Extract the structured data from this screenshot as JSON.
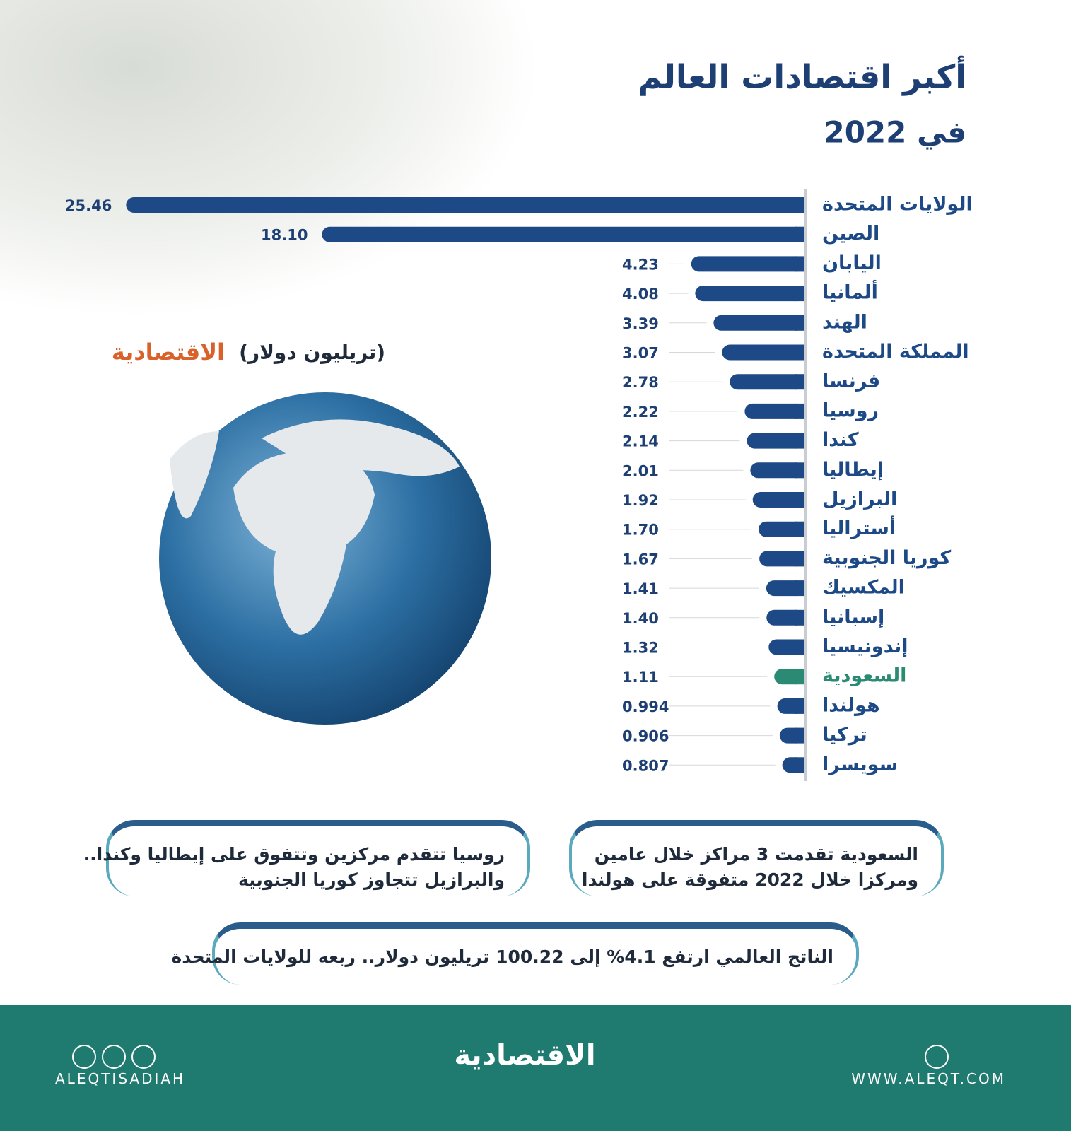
{
  "chart_data": {
    "type": "bar",
    "orientation": "horizontal",
    "title": "أكبر اقتصادات العالم",
    "subtitle": "في 2022",
    "unit_label": "(تريليون دولار)",
    "categories": [
      "الولايات المتحدة",
      "الصين",
      "اليابان",
      "ألمانيا",
      "الهند",
      "المملكة المتحدة",
      "فرنسا",
      "روسيا",
      "كندا",
      "إيطاليا",
      "البرازيل",
      "أستراليا",
      "كوريا الجنوبية",
      "المكسيك",
      "إسبانيا",
      "إندونيسيا",
      "السعودية",
      "هولندا",
      "تركيا",
      "سويسرا"
    ],
    "values": [
      25.46,
      18.1,
      4.23,
      4.08,
      3.39,
      3.07,
      2.78,
      2.22,
      2.14,
      2.01,
      1.92,
      1.7,
      1.67,
      1.41,
      1.4,
      1.32,
      1.11,
      0.994,
      0.906,
      0.807
    ],
    "value_labels": [
      "25.46",
      "18.10",
      "4.23",
      "4.08",
      "3.39",
      "3.07",
      "2.78",
      "2.22",
      "2.14",
      "2.01",
      "1.92",
      "1.70",
      "1.67",
      "1.41",
      "1.40",
      "1.32",
      "1.11",
      "0.994",
      "0.906",
      "0.807"
    ],
    "colors": [
      "#1d4a86",
      "#1d4a86",
      "#1d4a86",
      "#1d4a86",
      "#1d4a86",
      "#1d4a86",
      "#1d4a86",
      "#1d4a86",
      "#1d4a86",
      "#1d4a86",
      "#1d4a86",
      "#1d4a86",
      "#1d4a86",
      "#1d4a86",
      "#1d4a86",
      "#1d4a86",
      "#2a8a74",
      "#1d4a86",
      "#1d4a86",
      "#1d4a86"
    ],
    "xlim": [
      0,
      26
    ]
  },
  "brand": "الاقتصادية",
  "callouts": [
    [
      "السعودية تقدمت 3 مراكز خلال عامين",
      "ومركزا خلال 2022 متفوقة على هولندا"
    ],
    [
      "روسيا تتقدم مركزين وتتفوق على إيطاليا وكندا..",
      "والبرازيل تتجاوز كوريا الجنوبية"
    ],
    [
      "الناتج العالمي ارتفع 4.1% إلى 100.22 تريليون دولار.. ربعه للولايات المتحدة"
    ]
  ],
  "footer": {
    "logo": "الاقتصادية",
    "handle": "ALEQTISADIAH",
    "website": "WWW.ALEQT.COM"
  }
}
